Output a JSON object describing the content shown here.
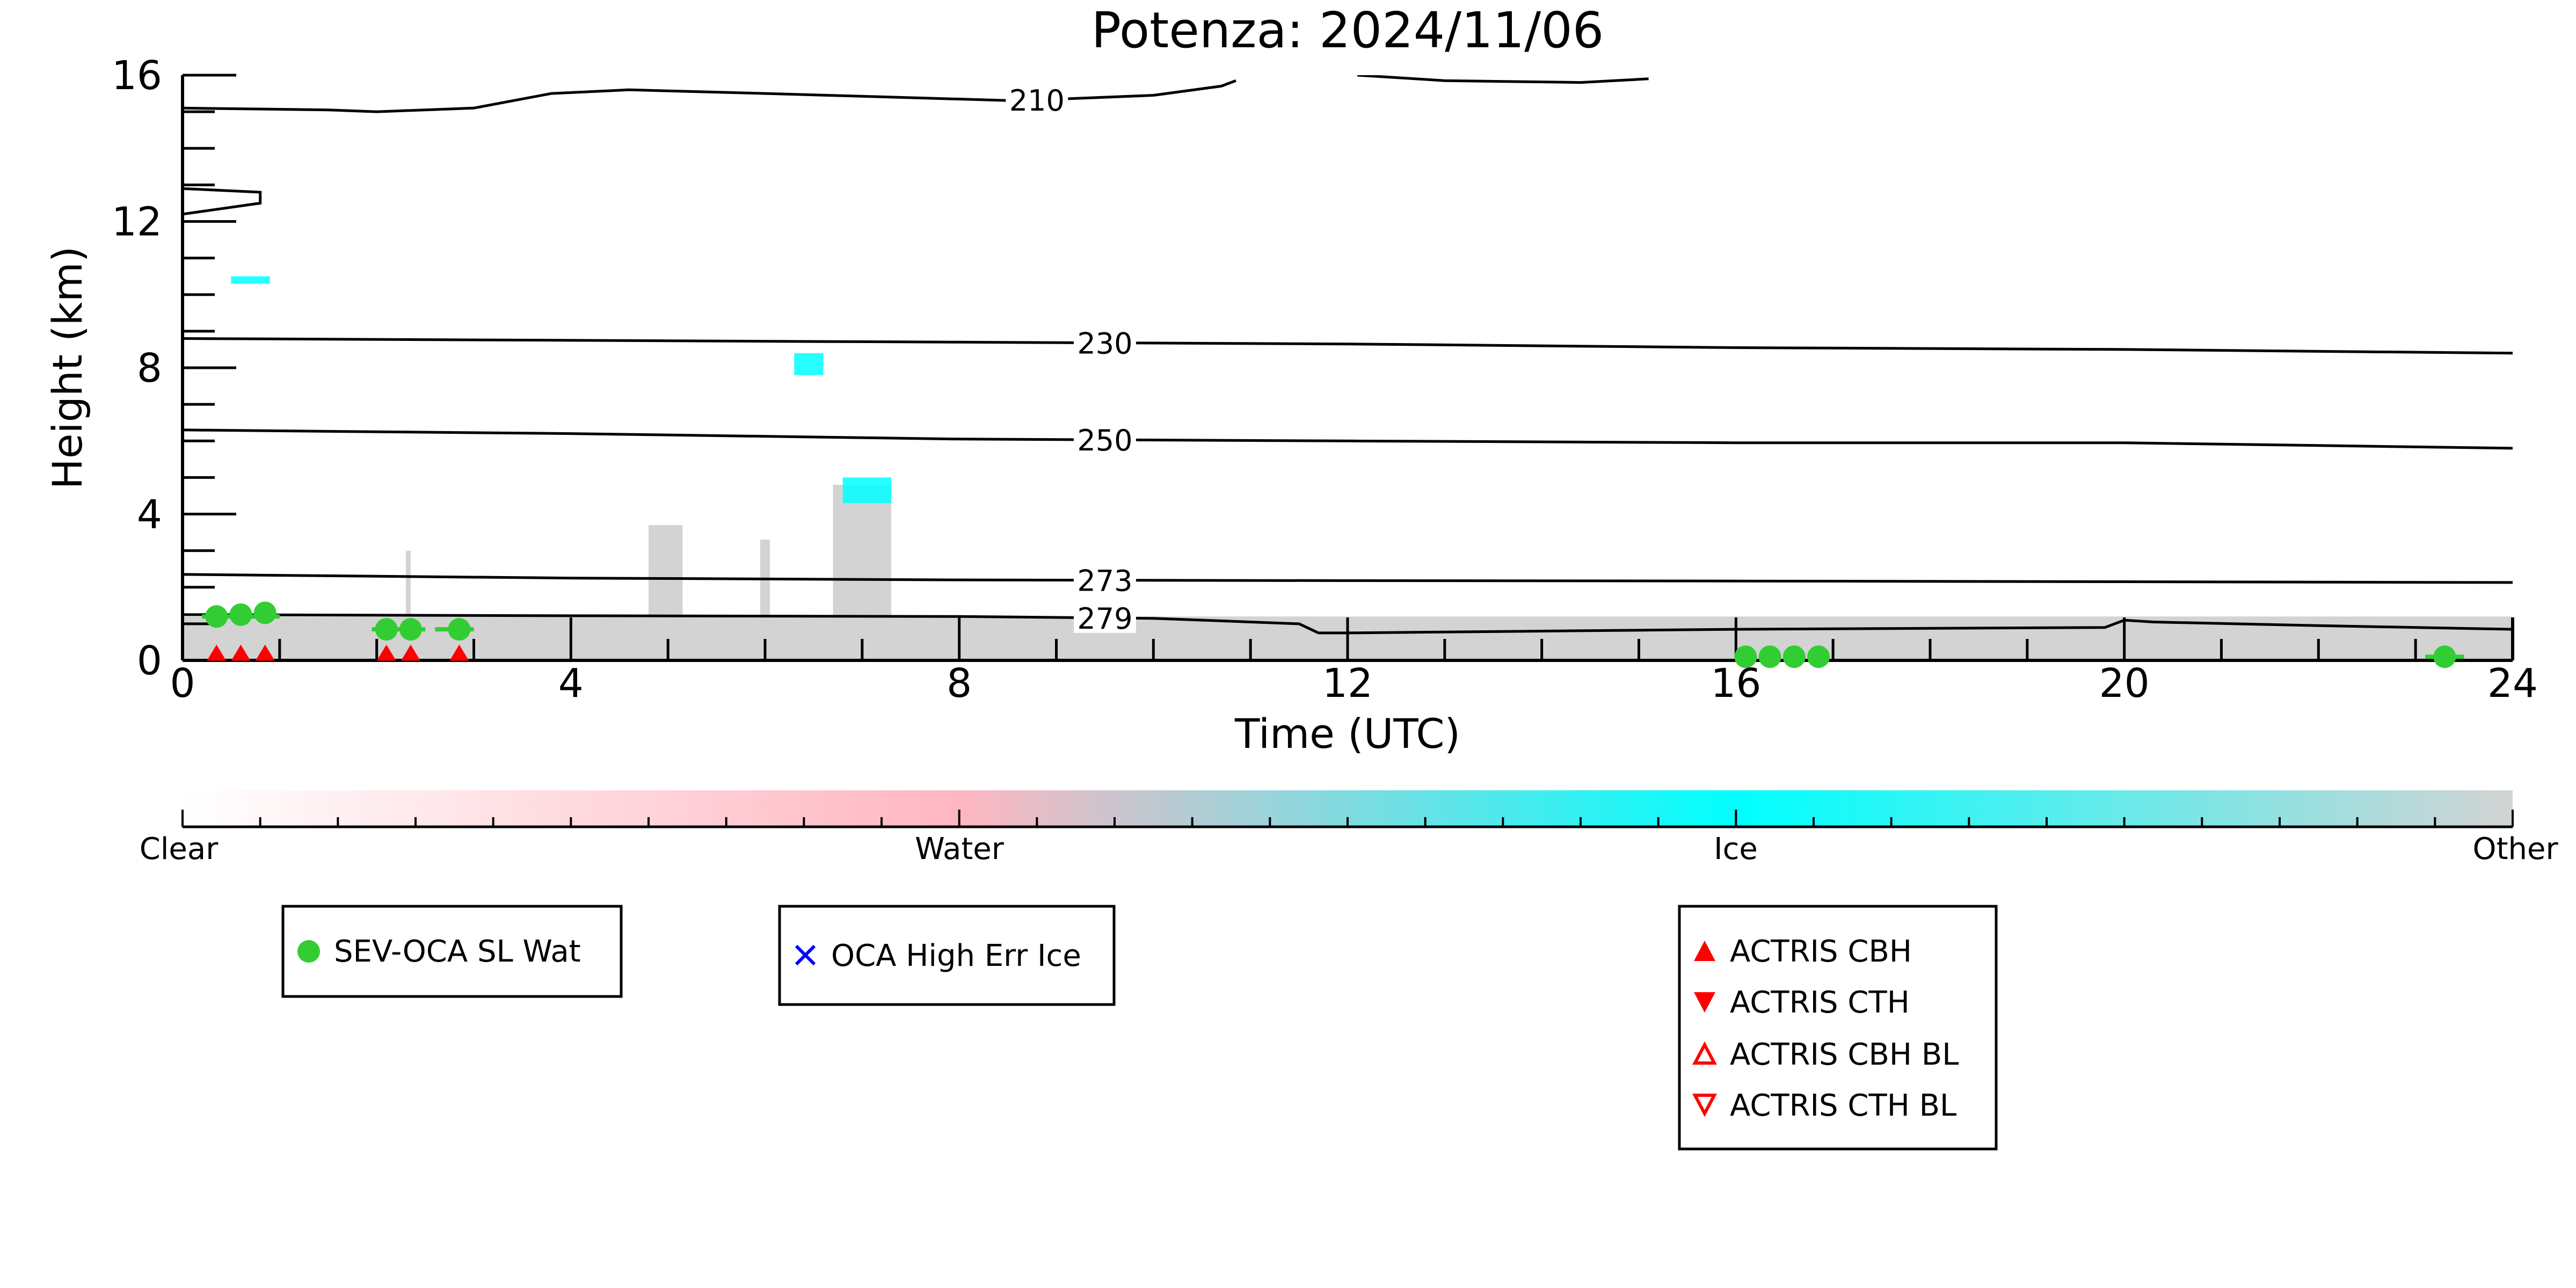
{
  "chart_data": {
    "type": "heatmap",
    "title": "Potenza: 2024/11/06",
    "xlabel": "Time (UTC)",
    "ylabel": "Height (km)",
    "xlim": [
      0,
      24
    ],
    "ylim": [
      0,
      16
    ],
    "x_ticks": [
      "0",
      "4",
      "8",
      "12",
      "16",
      "20",
      "24"
    ],
    "y_ticks": [
      "0",
      "4",
      "8",
      "12",
      "16"
    ],
    "grid": false,
    "colorbar": {
      "labels": [
        "Clear",
        "Water",
        "Ice",
        "Other"
      ],
      "colors": [
        "#ffffff",
        "#ffb6c1",
        "#00ffff",
        "#d3d3d3"
      ]
    },
    "cloud_mask": {
      "description_color": "#d3d3d3",
      "ice_color": "#00ffff",
      "other_regions": [
        {
          "x0": 0.0,
          "x1": 24.0,
          "top": 1.2
        },
        {
          "x0": 2.3,
          "x1": 2.35,
          "top": 3.0
        },
        {
          "x0": 4.8,
          "x1": 5.15,
          "top": 3.7
        },
        {
          "x0": 5.95,
          "x1": 6.05,
          "top": 3.3
        },
        {
          "x0": 6.7,
          "x1": 7.3,
          "top": 4.8
        }
      ],
      "ice_patches": [
        {
          "x0": 0.5,
          "x1": 0.9,
          "y0": 10.3,
          "y1": 10.5
        },
        {
          "x0": 6.3,
          "x1": 6.6,
          "y0": 7.8,
          "y1": 8.4
        },
        {
          "x0": 6.8,
          "x1": 7.3,
          "y0": 4.3,
          "y1": 5.0
        }
      ]
    },
    "temperature_contours": [
      {
        "label": "210",
        "points": [
          [
            0,
            15.1
          ],
          [
            1.5,
            15.05
          ],
          [
            2,
            15.0
          ],
          [
            3,
            15.1
          ],
          [
            3.8,
            15.5
          ],
          [
            4.6,
            15.6
          ],
          [
            6,
            15.5
          ],
          [
            8.6,
            15.3
          ],
          [
            10,
            15.45
          ],
          [
            10.7,
            15.7
          ],
          [
            10.85,
            15.85
          ],
          [
            null,
            null
          ],
          [
            12.1,
            16.0
          ],
          [
            13,
            15.85
          ],
          [
            14.4,
            15.8
          ],
          [
            15.1,
            15.9
          ]
        ]
      },
      {
        "label": "",
        "points": [
          [
            0,
            12.2
          ],
          [
            0.8,
            12.5
          ],
          [
            0.8,
            12.8
          ],
          [
            0,
            12.9
          ]
        ]
      },
      {
        "label": "230",
        "points": [
          [
            0,
            8.8
          ],
          [
            4,
            8.75
          ],
          [
            8,
            8.7
          ],
          [
            12,
            8.65
          ],
          [
            16,
            8.55
          ],
          [
            20,
            8.5
          ],
          [
            24,
            8.4
          ]
        ]
      },
      {
        "label": "250",
        "points": [
          [
            0,
            6.3
          ],
          [
            4,
            6.2
          ],
          [
            8,
            6.05
          ],
          [
            12,
            6.0
          ],
          [
            16,
            5.95
          ],
          [
            20,
            5.95
          ],
          [
            24,
            5.8
          ]
        ]
      },
      {
        "label": "273",
        "points": [
          [
            0,
            2.35
          ],
          [
            4,
            2.25
          ],
          [
            8,
            2.2
          ],
          [
            12,
            2.18
          ],
          [
            16,
            2.17
          ],
          [
            20,
            2.15
          ],
          [
            24,
            2.13
          ]
        ]
      },
      {
        "label": "279",
        "points": [
          [
            0,
            1.25
          ],
          [
            4,
            1.22
          ],
          [
            8,
            1.2
          ],
          [
            10,
            1.15
          ],
          [
            11.5,
            1.0
          ],
          [
            11.7,
            0.75
          ],
          [
            12,
            0.75
          ],
          [
            14,
            0.8
          ],
          [
            16,
            0.85
          ],
          [
            19.8,
            0.9
          ],
          [
            20,
            1.1
          ],
          [
            20.3,
            1.05
          ],
          [
            22,
            0.95
          ],
          [
            24,
            0.85
          ]
        ]
      }
    ],
    "series": [
      {
        "name": "SEV-OCA SL Wat",
        "marker": "circle",
        "color": "#32cd32",
        "points": [
          [
            0.35,
            1.2
          ],
          [
            0.6,
            1.25
          ],
          [
            0.85,
            1.3
          ],
          [
            2.1,
            0.85
          ],
          [
            2.35,
            0.85
          ],
          [
            2.85,
            0.85
          ],
          [
            16.1,
            0.1
          ],
          [
            16.35,
            0.1
          ],
          [
            16.6,
            0.1
          ],
          [
            16.85,
            0.1
          ],
          [
            23.3,
            0.1
          ]
        ],
        "error_bars": [
          [
            0.2,
            1.0,
            1.2
          ],
          [
            1.95,
            2.5,
            0.85
          ],
          [
            2.6,
            3.0,
            0.85
          ],
          [
            23.1,
            23.5,
            0.1
          ]
        ]
      },
      {
        "name": "OCA High Err Ice",
        "marker": "x",
        "color": "#0000ff",
        "points": []
      },
      {
        "name": "ACTRIS CBH",
        "marker": "triangle-up",
        "color": "#ff0000",
        "points": [
          [
            0.35,
            0.05
          ],
          [
            0.6,
            0.05
          ],
          [
            0.85,
            0.05
          ],
          [
            2.1,
            0.05
          ],
          [
            2.35,
            0.05
          ],
          [
            2.85,
            0.05
          ]
        ]
      },
      {
        "name": "ACTRIS CTH",
        "marker": "triangle-down",
        "color": "#ff0000",
        "points": []
      },
      {
        "name": "ACTRIS CBH BL",
        "marker": "triangle-up-open",
        "color": "#ff0000",
        "points": []
      },
      {
        "name": "ACTRIS CTH BL",
        "marker": "triangle-down-open",
        "color": "#ff0000",
        "points": []
      }
    ],
    "legend_groups": [
      [
        "SEV-OCA SL Wat"
      ],
      [
        "OCA High Err Ice"
      ],
      [
        "ACTRIS CBH",
        "ACTRIS CTH",
        "ACTRIS CBH BL",
        "ACTRIS CTH BL"
      ]
    ]
  }
}
